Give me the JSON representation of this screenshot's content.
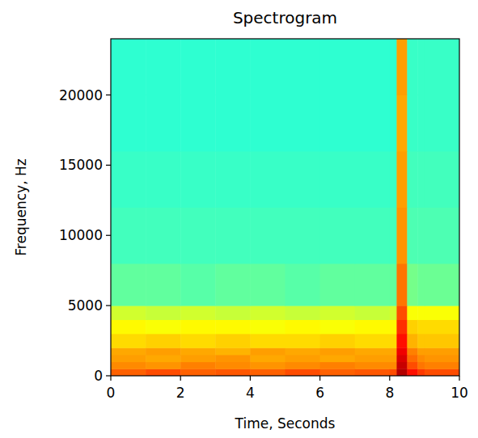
{
  "chart_data": {
    "type": "heatmap",
    "title": "Spectrogram",
    "x_label": "Time, Seconds",
    "y_label": "Frequency, Hz",
    "xlim": [
      0,
      10
    ],
    "ylim": [
      0,
      24000
    ],
    "xticks": [
      0,
      2,
      4,
      6,
      8,
      10
    ],
    "yticks": [
      0,
      5000,
      10000,
      15000,
      20000
    ],
    "grid": false,
    "color": "jet",
    "zlim": [
      0,
      1
    ],
    "x_edges": [
      0,
      1,
      2,
      3,
      4,
      5,
      6,
      7,
      8,
      8.2,
      8.5,
      8.8,
      9,
      10
    ],
    "y_edges": [
      0,
      500,
      1000,
      1500,
      2000,
      3000,
      4000,
      5000,
      8000,
      12000,
      16000,
      20000,
      24000
    ],
    "cells": [
      [
        0.78,
        0.8,
        0.78,
        0.79,
        0.78,
        0.8,
        0.78,
        0.79,
        0.8,
        0.95,
        0.86,
        0.82,
        0.8
      ],
      [
        0.74,
        0.73,
        0.75,
        0.74,
        0.73,
        0.74,
        0.75,
        0.74,
        0.74,
        0.93,
        0.8,
        0.76,
        0.75
      ],
      [
        0.72,
        0.71,
        0.72,
        0.73,
        0.71,
        0.72,
        0.71,
        0.72,
        0.72,
        0.91,
        0.77,
        0.74,
        0.73
      ],
      [
        0.71,
        0.72,
        0.71,
        0.7,
        0.72,
        0.71,
        0.72,
        0.71,
        0.71,
        0.89,
        0.75,
        0.72,
        0.72
      ],
      [
        0.66,
        0.67,
        0.66,
        0.67,
        0.66,
        0.66,
        0.67,
        0.66,
        0.66,
        0.86,
        0.7,
        0.68,
        0.68
      ],
      [
        0.63,
        0.62,
        0.63,
        0.63,
        0.62,
        0.63,
        0.62,
        0.63,
        0.63,
        0.83,
        0.67,
        0.66,
        0.66
      ],
      [
        0.58,
        0.57,
        0.58,
        0.57,
        0.58,
        0.57,
        0.58,
        0.57,
        0.58,
        0.8,
        0.62,
        0.62,
        0.62
      ],
      [
        0.47,
        0.47,
        0.46,
        0.47,
        0.47,
        0.46,
        0.47,
        0.47,
        0.47,
        0.76,
        0.49,
        0.48,
        0.48
      ],
      [
        0.44,
        0.44,
        0.44,
        0.44,
        0.44,
        0.44,
        0.44,
        0.44,
        0.44,
        0.73,
        0.45,
        0.45,
        0.45
      ],
      [
        0.43,
        0.43,
        0.43,
        0.43,
        0.43,
        0.43,
        0.43,
        0.43,
        0.43,
        0.72,
        0.44,
        0.44,
        0.44
      ],
      [
        0.42,
        0.42,
        0.42,
        0.42,
        0.42,
        0.42,
        0.42,
        0.42,
        0.42,
        0.71,
        0.43,
        0.43,
        0.43
      ],
      [
        0.42,
        0.42,
        0.42,
        0.42,
        0.42,
        0.42,
        0.42,
        0.42,
        0.42,
        0.72,
        0.43,
        0.43,
        0.43
      ]
    ]
  }
}
